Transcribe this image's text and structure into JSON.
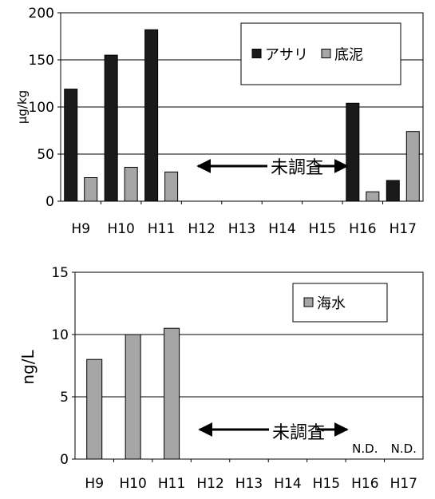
{
  "chart_data": [
    {
      "type": "bar",
      "categories": [
        "H9",
        "H10",
        "H11",
        "H12",
        "H13",
        "H14",
        "H15",
        "H16",
        "H17"
      ],
      "series": [
        {
          "name": "アサリ",
          "color": "#1a1a1a",
          "values": [
            119,
            155,
            182,
            null,
            null,
            null,
            null,
            104,
            22
          ]
        },
        {
          "name": "底泥",
          "color": "#a6a6a6",
          "values": [
            25,
            36,
            31,
            null,
            null,
            null,
            null,
            10,
            74
          ]
        }
      ],
      "ylabel": "μg/kg",
      "ylim": [
        0,
        200
      ],
      "yticks": [
        "0",
        "50",
        "100",
        "150",
        "200"
      ],
      "grid": true,
      "legend": "top-right",
      "annotation": "未調査",
      "annotation_arrows": true
    },
    {
      "type": "bar",
      "categories": [
        "H9",
        "H10",
        "H11",
        "H12",
        "H13",
        "H14",
        "H15",
        "H16",
        "H17"
      ],
      "series": [
        {
          "name": "海水",
          "color": "#a6a6a6",
          "values": [
            8,
            10,
            10.5,
            null,
            null,
            null,
            null,
            0,
            0
          ]
        }
      ],
      "ylabel": "ng/L",
      "ylim": [
        0,
        15
      ],
      "yticks": [
        "0",
        "5",
        "10",
        "15"
      ],
      "grid": true,
      "legend": "top-right",
      "annotation": "未調査",
      "annotation_arrows": true,
      "value_labels": [
        {
          "category": "H16",
          "text": "N.D."
        },
        {
          "category": "H17",
          "text": "N.D."
        }
      ]
    }
  ]
}
